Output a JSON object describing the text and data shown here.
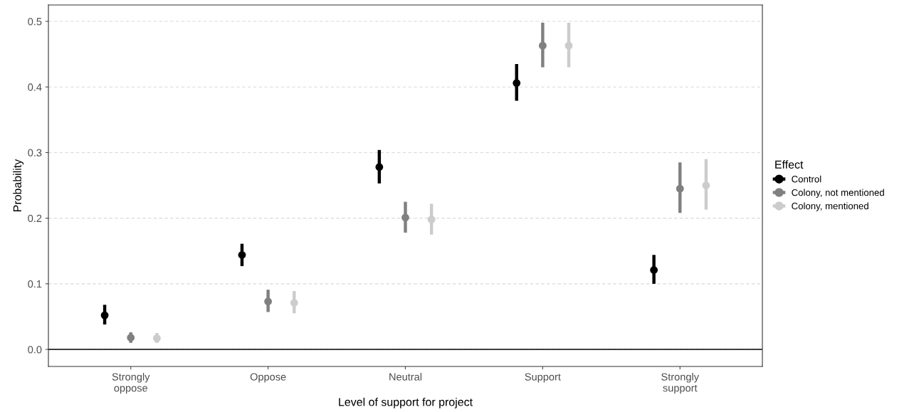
{
  "chart_data": {
    "type": "scatter",
    "xlabel": "Level of support for project",
    "ylabel": "Probability",
    "legend_title": "Effect",
    "categories": [
      "Strongly\noppose",
      "Oppose",
      "Neutral",
      "Support",
      "Strongly\nsupport"
    ],
    "series": [
      {
        "name": "Control",
        "color": "#000000",
        "values": [
          0.052,
          0.144,
          0.278,
          0.406,
          0.121
        ],
        "errors": [
          [
            0.038,
            0.068
          ],
          [
            0.127,
            0.161
          ],
          [
            0.253,
            0.304
          ],
          [
            0.379,
            0.435
          ],
          [
            0.1,
            0.144
          ]
        ]
      },
      {
        "name": "Colony, not mentioned",
        "color": "#808080",
        "values": [
          0.018,
          0.073,
          0.201,
          0.463,
          0.245
        ],
        "errors": [
          [
            0.01,
            0.026
          ],
          [
            0.057,
            0.091
          ],
          [
            0.178,
            0.225
          ],
          [
            0.43,
            0.498
          ],
          [
            0.208,
            0.285
          ]
        ]
      },
      {
        "name": "Colony, mentioned",
        "color": "#cccccc",
        "values": [
          0.017,
          0.071,
          0.198,
          0.463,
          0.25
        ],
        "errors": [
          [
            0.01,
            0.025
          ],
          [
            0.055,
            0.089
          ],
          [
            0.175,
            0.222
          ],
          [
            0.43,
            0.498
          ],
          [
            0.213,
            0.29
          ]
        ]
      }
    ],
    "ylim": [
      -0.026,
      0.525
    ],
    "yticks": [
      {
        "value": 0,
        "label": "0.0"
      },
      0.1,
      0.2,
      0.3,
      0.4,
      0.5
    ],
    "ref_lines": [
      {
        "axis": "y",
        "value": 0,
        "color": "#000000"
      }
    ],
    "grid": "y",
    "legend": "right",
    "marker": "circle"
  }
}
